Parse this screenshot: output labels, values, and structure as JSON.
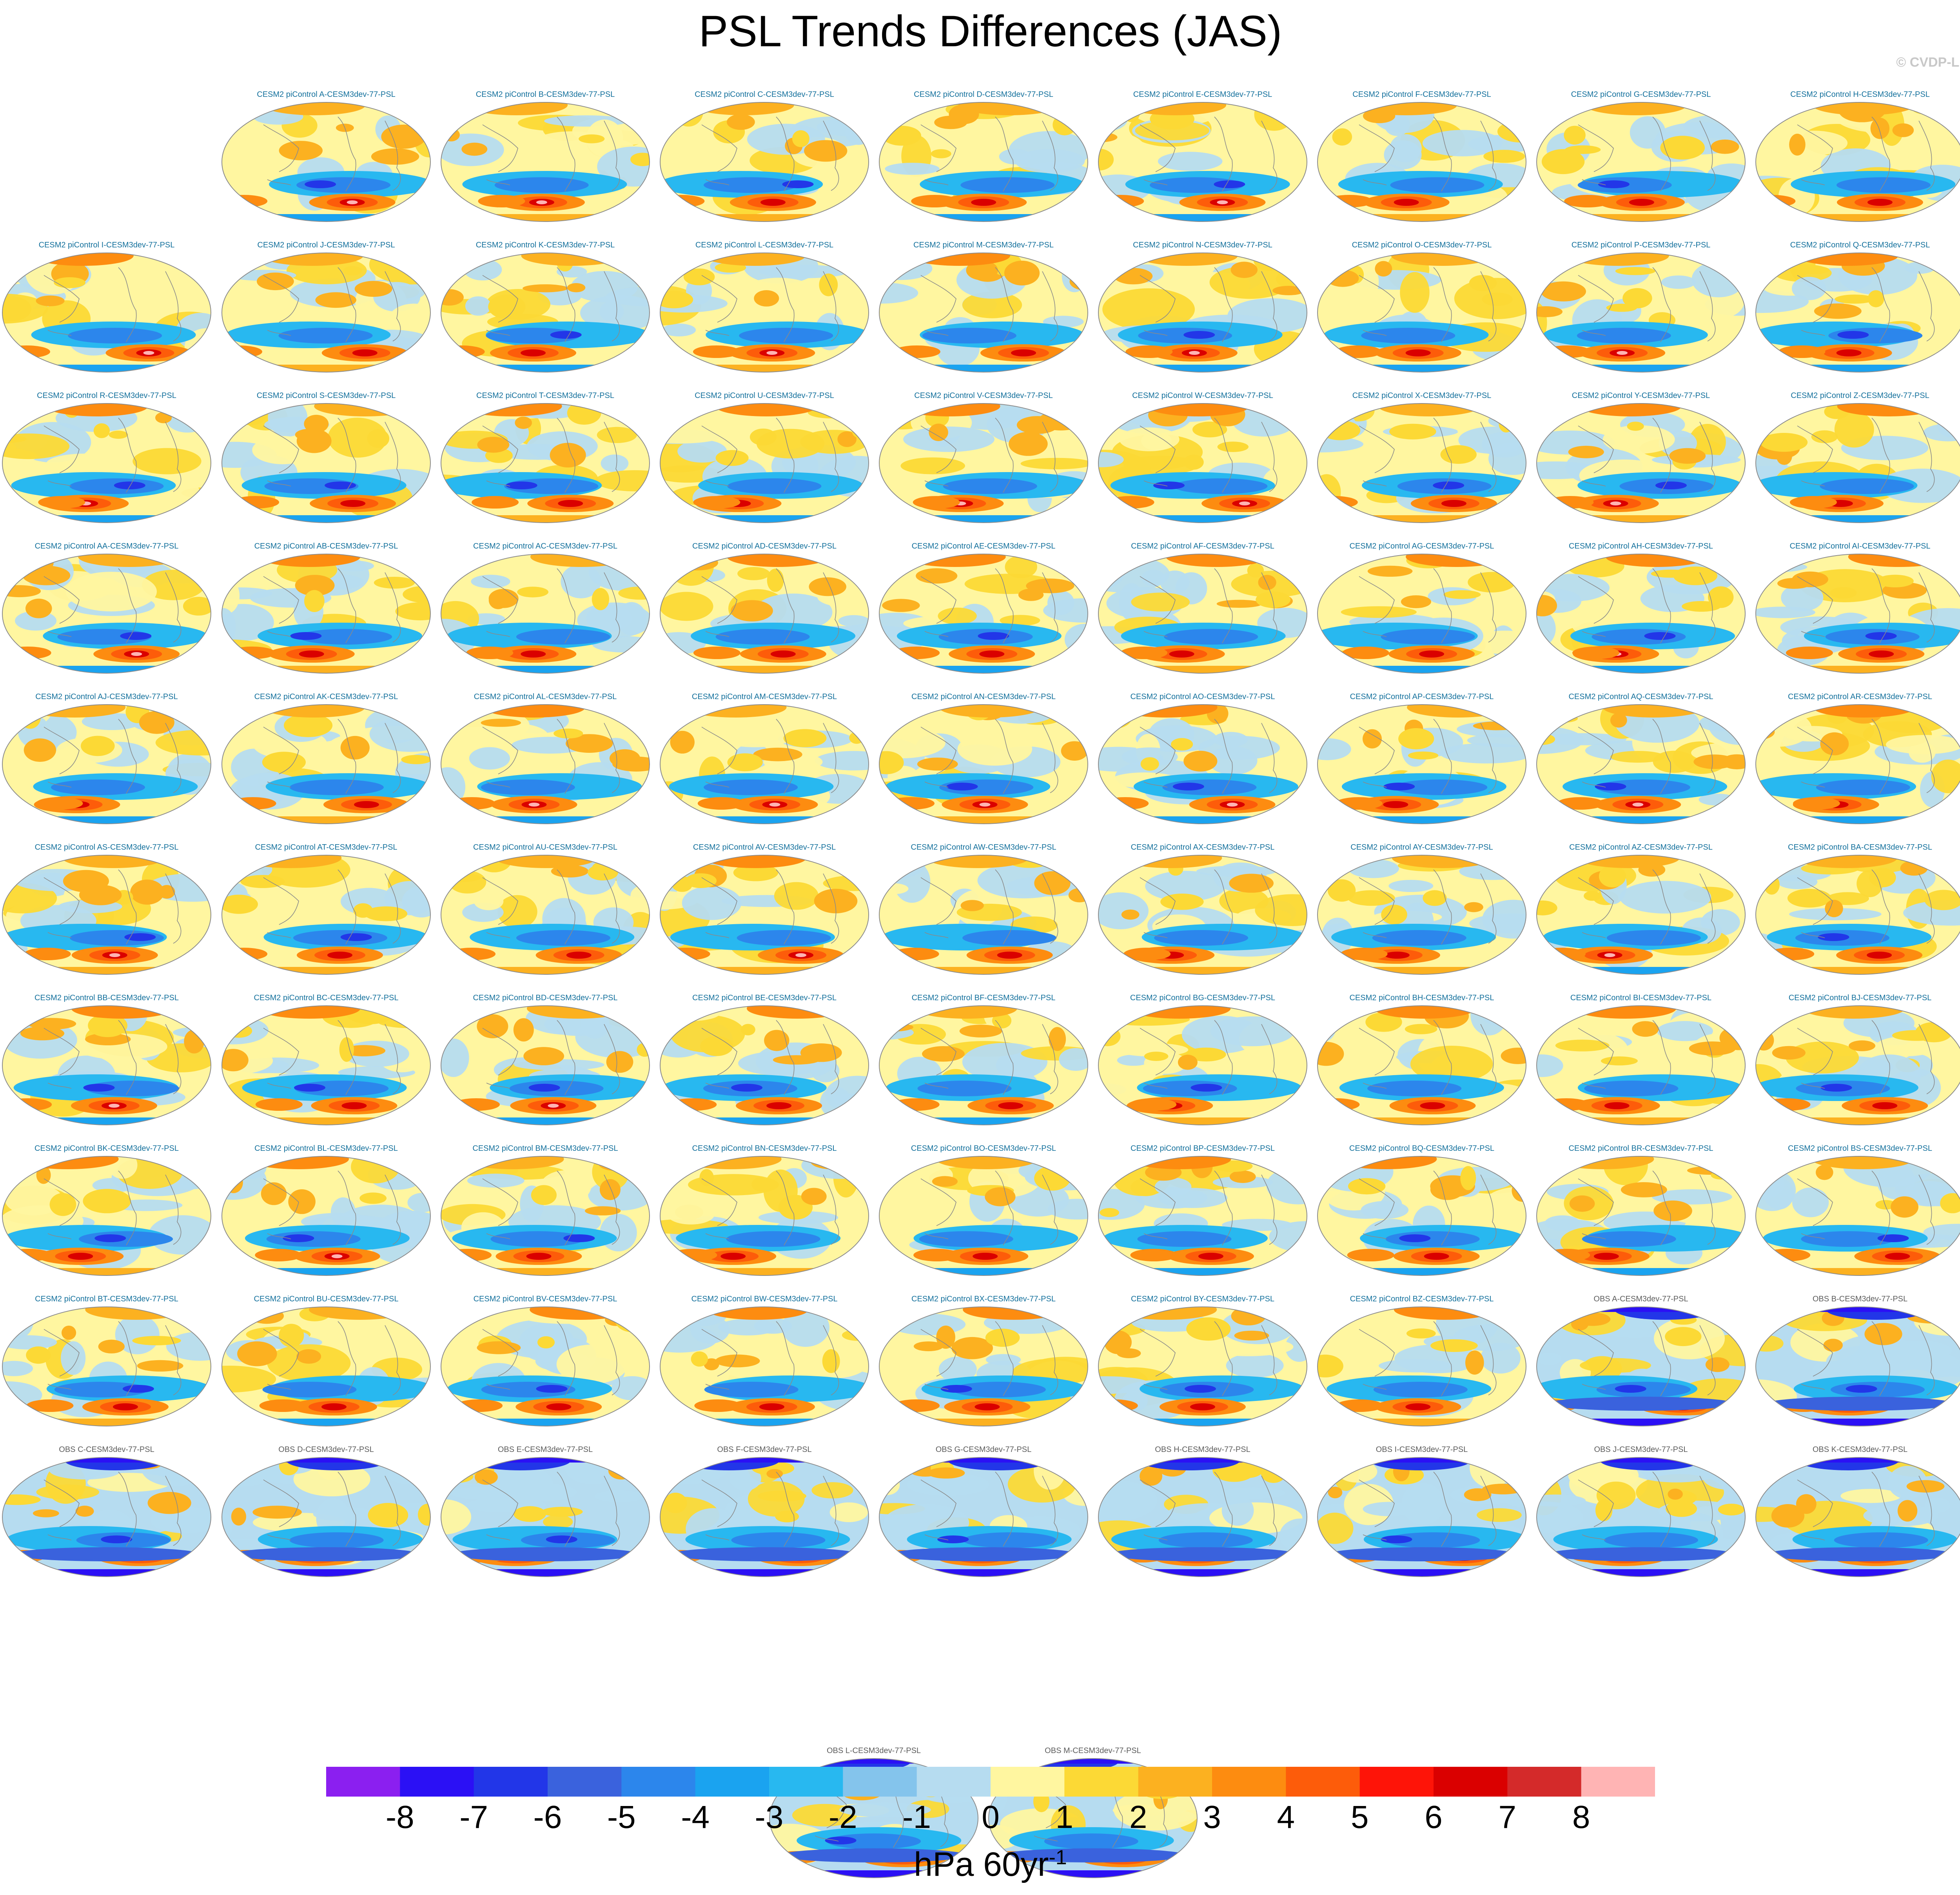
{
  "title": "PSL Trends Differences (JAS)",
  "credit": "© CVDP-LE",
  "chart_data": {
    "type": "map-panels",
    "projection": "global ellipse",
    "variable": "PSL",
    "season": "JAS",
    "panels": [
      {
        "id": "A",
        "label": "CESM2 piControl A-CESM3dev-77-PSL",
        "group": "cesm"
      },
      {
        "id": "B",
        "label": "CESM2 piControl B-CESM3dev-77-PSL",
        "group": "cesm"
      },
      {
        "id": "C",
        "label": "CESM2 piControl C-CESM3dev-77-PSL",
        "group": "cesm"
      },
      {
        "id": "D",
        "label": "CESM2 piControl D-CESM3dev-77-PSL",
        "group": "cesm"
      },
      {
        "id": "E",
        "label": "CESM2 piControl E-CESM3dev-77-PSL",
        "group": "cesm"
      },
      {
        "id": "F",
        "label": "CESM2 piControl F-CESM3dev-77-PSL",
        "group": "cesm"
      },
      {
        "id": "G",
        "label": "CESM2 piControl G-CESM3dev-77-PSL",
        "group": "cesm"
      },
      {
        "id": "H",
        "label": "CESM2 piControl H-CESM3dev-77-PSL",
        "group": "cesm"
      },
      {
        "id": "I",
        "label": "CESM2 piControl I-CESM3dev-77-PSL",
        "group": "cesm"
      },
      {
        "id": "J",
        "label": "CESM2 piControl J-CESM3dev-77-PSL",
        "group": "cesm"
      },
      {
        "id": "K",
        "label": "CESM2 piControl K-CESM3dev-77-PSL",
        "group": "cesm"
      },
      {
        "id": "L",
        "label": "CESM2 piControl L-CESM3dev-77-PSL",
        "group": "cesm"
      },
      {
        "id": "M",
        "label": "CESM2 piControl M-CESM3dev-77-PSL",
        "group": "cesm"
      },
      {
        "id": "N",
        "label": "CESM2 piControl N-CESM3dev-77-PSL",
        "group": "cesm"
      },
      {
        "id": "O",
        "label": "CESM2 piControl O-CESM3dev-77-PSL",
        "group": "cesm"
      },
      {
        "id": "P",
        "label": "CESM2 piControl P-CESM3dev-77-PSL",
        "group": "cesm"
      },
      {
        "id": "Q",
        "label": "CESM2 piControl Q-CESM3dev-77-PSL",
        "group": "cesm"
      },
      {
        "id": "R",
        "label": "CESM2 piControl R-CESM3dev-77-PSL",
        "group": "cesm"
      },
      {
        "id": "S",
        "label": "CESM2 piControl S-CESM3dev-77-PSL",
        "group": "cesm"
      },
      {
        "id": "T",
        "label": "CESM2 piControl T-CESM3dev-77-PSL",
        "group": "cesm"
      },
      {
        "id": "U",
        "label": "CESM2 piControl U-CESM3dev-77-PSL",
        "group": "cesm"
      },
      {
        "id": "V",
        "label": "CESM2 piControl V-CESM3dev-77-PSL",
        "group": "cesm"
      },
      {
        "id": "W",
        "label": "CESM2 piControl W-CESM3dev-77-PSL",
        "group": "cesm"
      },
      {
        "id": "X",
        "label": "CESM2 piControl X-CESM3dev-77-PSL",
        "group": "cesm"
      },
      {
        "id": "Y",
        "label": "CESM2 piControl Y-CESM3dev-77-PSL",
        "group": "cesm"
      },
      {
        "id": "Z",
        "label": "CESM2 piControl Z-CESM3dev-77-PSL",
        "group": "cesm"
      },
      {
        "id": "AA",
        "label": "CESM2 piControl AA-CESM3dev-77-PSL",
        "group": "cesm"
      },
      {
        "id": "AB",
        "label": "CESM2 piControl AB-CESM3dev-77-PSL",
        "group": "cesm"
      },
      {
        "id": "AC",
        "label": "CESM2 piControl AC-CESM3dev-77-PSL",
        "group": "cesm"
      },
      {
        "id": "AD",
        "label": "CESM2 piControl AD-CESM3dev-77-PSL",
        "group": "cesm"
      },
      {
        "id": "AE",
        "label": "CESM2 piControl AE-CESM3dev-77-PSL",
        "group": "cesm"
      },
      {
        "id": "AF",
        "label": "CESM2 piControl AF-CESM3dev-77-PSL",
        "group": "cesm"
      },
      {
        "id": "AG",
        "label": "CESM2 piControl AG-CESM3dev-77-PSL",
        "group": "cesm"
      },
      {
        "id": "AH",
        "label": "CESM2 piControl AH-CESM3dev-77-PSL",
        "group": "cesm"
      },
      {
        "id": "AI",
        "label": "CESM2 piControl AI-CESM3dev-77-PSL",
        "group": "cesm"
      },
      {
        "id": "AJ",
        "label": "CESM2 piControl AJ-CESM3dev-77-PSL",
        "group": "cesm"
      },
      {
        "id": "AK",
        "label": "CESM2 piControl AK-CESM3dev-77-PSL",
        "group": "cesm"
      },
      {
        "id": "AL",
        "label": "CESM2 piControl AL-CESM3dev-77-PSL",
        "group": "cesm"
      },
      {
        "id": "AM",
        "label": "CESM2 piControl AM-CESM3dev-77-PSL",
        "group": "cesm"
      },
      {
        "id": "AN",
        "label": "CESM2 piControl AN-CESM3dev-77-PSL",
        "group": "cesm"
      },
      {
        "id": "AO",
        "label": "CESM2 piControl AO-CESM3dev-77-PSL",
        "group": "cesm"
      },
      {
        "id": "AP",
        "label": "CESM2 piControl AP-CESM3dev-77-PSL",
        "group": "cesm"
      },
      {
        "id": "AQ",
        "label": "CESM2 piControl AQ-CESM3dev-77-PSL",
        "group": "cesm"
      },
      {
        "id": "AR",
        "label": "CESM2 piControl AR-CESM3dev-77-PSL",
        "group": "cesm"
      },
      {
        "id": "AS",
        "label": "CESM2 piControl AS-CESM3dev-77-PSL",
        "group": "cesm"
      },
      {
        "id": "AT",
        "label": "CESM2 piControl AT-CESM3dev-77-PSL",
        "group": "cesm"
      },
      {
        "id": "AU",
        "label": "CESM2 piControl AU-CESM3dev-77-PSL",
        "group": "cesm"
      },
      {
        "id": "AV",
        "label": "CESM2 piControl AV-CESM3dev-77-PSL",
        "group": "cesm"
      },
      {
        "id": "AW",
        "label": "CESM2 piControl AW-CESM3dev-77-PSL",
        "group": "cesm"
      },
      {
        "id": "AX",
        "label": "CESM2 piControl AX-CESM3dev-77-PSL",
        "group": "cesm"
      },
      {
        "id": "AY",
        "label": "CESM2 piControl AY-CESM3dev-77-PSL",
        "group": "cesm"
      },
      {
        "id": "AZ",
        "label": "CESM2 piControl AZ-CESM3dev-77-PSL",
        "group": "cesm"
      },
      {
        "id": "BA",
        "label": "CESM2 piControl BA-CESM3dev-77-PSL",
        "group": "cesm"
      },
      {
        "id": "BB",
        "label": "CESM2 piControl BB-CESM3dev-77-PSL",
        "group": "cesm"
      },
      {
        "id": "BC",
        "label": "CESM2 piControl BC-CESM3dev-77-PSL",
        "group": "cesm"
      },
      {
        "id": "BD",
        "label": "CESM2 piControl BD-CESM3dev-77-PSL",
        "group": "cesm"
      },
      {
        "id": "BE",
        "label": "CESM2 piControl BE-CESM3dev-77-PSL",
        "group": "cesm"
      },
      {
        "id": "BF",
        "label": "CESM2 piControl BF-CESM3dev-77-PSL",
        "group": "cesm"
      },
      {
        "id": "BG",
        "label": "CESM2 piControl BG-CESM3dev-77-PSL",
        "group": "cesm"
      },
      {
        "id": "BH",
        "label": "CESM2 piControl BH-CESM3dev-77-PSL",
        "group": "cesm"
      },
      {
        "id": "BI",
        "label": "CESM2 piControl BI-CESM3dev-77-PSL",
        "group": "cesm"
      },
      {
        "id": "BJ",
        "label": "CESM2 piControl BJ-CESM3dev-77-PSL",
        "group": "cesm"
      },
      {
        "id": "BK",
        "label": "CESM2 piControl BK-CESM3dev-77-PSL",
        "group": "cesm"
      },
      {
        "id": "BL",
        "label": "CESM2 piControl BL-CESM3dev-77-PSL",
        "group": "cesm"
      },
      {
        "id": "BM",
        "label": "CESM2 piControl BM-CESM3dev-77-PSL",
        "group": "cesm"
      },
      {
        "id": "BN",
        "label": "CESM2 piControl BN-CESM3dev-77-PSL",
        "group": "cesm"
      },
      {
        "id": "BO",
        "label": "CESM2 piControl BO-CESM3dev-77-PSL",
        "group": "cesm"
      },
      {
        "id": "BP",
        "label": "CESM2 piControl BP-CESM3dev-77-PSL",
        "group": "cesm"
      },
      {
        "id": "BQ",
        "label": "CESM2 piControl BQ-CESM3dev-77-PSL",
        "group": "cesm"
      },
      {
        "id": "BR",
        "label": "CESM2 piControl BR-CESM3dev-77-PSL",
        "group": "cesm"
      },
      {
        "id": "BS",
        "label": "CESM2 piControl BS-CESM3dev-77-PSL",
        "group": "cesm"
      },
      {
        "id": "BT",
        "label": "CESM2 piControl BT-CESM3dev-77-PSL",
        "group": "cesm"
      },
      {
        "id": "BU",
        "label": "CESM2 piControl BU-CESM3dev-77-PSL",
        "group": "cesm"
      },
      {
        "id": "BV",
        "label": "CESM2 piControl BV-CESM3dev-77-PSL",
        "group": "cesm"
      },
      {
        "id": "BW",
        "label": "CESM2 piControl BW-CESM3dev-77-PSL",
        "group": "cesm"
      },
      {
        "id": "BX",
        "label": "CESM2 piControl BX-CESM3dev-77-PSL",
        "group": "cesm"
      },
      {
        "id": "BY",
        "label": "CESM2 piControl BY-CESM3dev-77-PSL",
        "group": "cesm"
      },
      {
        "id": "BZ",
        "label": "CESM2 piControl BZ-CESM3dev-77-PSL",
        "group": "cesm"
      },
      {
        "id": "OBS-A",
        "label": "OBS A-CESM3dev-77-PSL",
        "group": "obs"
      },
      {
        "id": "OBS-B",
        "label": "OBS B-CESM3dev-77-PSL",
        "group": "obs"
      },
      {
        "id": "OBS-C",
        "label": "OBS C-CESM3dev-77-PSL",
        "group": "obs"
      },
      {
        "id": "OBS-D",
        "label": "OBS D-CESM3dev-77-PSL",
        "group": "obs"
      },
      {
        "id": "OBS-E",
        "label": "OBS E-CESM3dev-77-PSL",
        "group": "obs"
      },
      {
        "id": "OBS-F",
        "label": "OBS F-CESM3dev-77-PSL",
        "group": "obs"
      },
      {
        "id": "OBS-G",
        "label": "OBS G-CESM3dev-77-PSL",
        "group": "obs"
      },
      {
        "id": "OBS-H",
        "label": "OBS H-CESM3dev-77-PSL",
        "group": "obs"
      },
      {
        "id": "OBS-I",
        "label": "OBS I-CESM3dev-77-PSL",
        "group": "obs"
      },
      {
        "id": "OBS-J",
        "label": "OBS J-CESM3dev-77-PSL",
        "group": "obs"
      },
      {
        "id": "OBS-K",
        "label": "OBS K-CESM3dev-77-PSL",
        "group": "obs"
      },
      {
        "id": "OBS-L",
        "label": "OBS L-CESM3dev-77-PSL",
        "group": "obs"
      },
      {
        "id": "OBS-M",
        "label": "OBS M-CESM3dev-77-PSL",
        "group": "obs"
      }
    ],
    "colorbar": {
      "tick_labels": [
        "-8",
        "-7",
        "-6",
        "-5",
        "-4",
        "-3",
        "-2",
        "-1",
        "0",
        "1",
        "2",
        "3",
        "4",
        "5",
        "6",
        "7",
        "8"
      ],
      "colors": [
        "#8b1ff0",
        "#2b10f5",
        "#2236e8",
        "#3a62dd",
        "#2c86ec",
        "#1aa3f0",
        "#28b8f0",
        "#84c4ec",
        "#b6dcf0",
        "#fff6a0",
        "#fcd935",
        "#fcb120",
        "#fd8c10",
        "#fd5c0a",
        "#fe1408",
        "#da0000",
        "#d42a2a",
        "#ffb4b4"
      ],
      "units": "hPa 60yr",
      "units_exponent": "-1"
    }
  }
}
